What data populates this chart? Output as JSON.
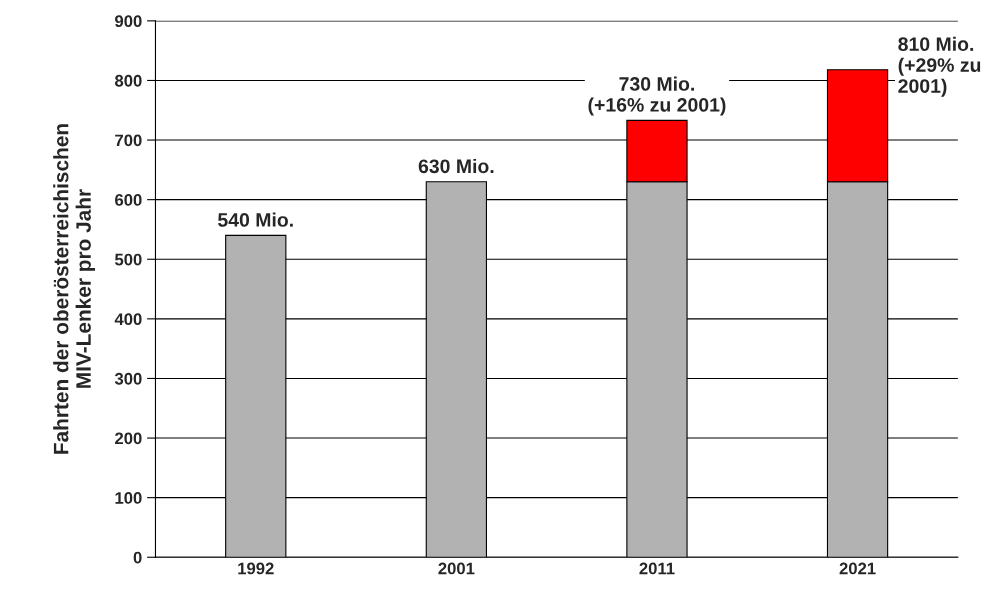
{
  "chart_data": {
    "type": "bar",
    "stacked": true,
    "ylabel": "Fahrten der oberösterreichischen\nMIV-Lenker pro Jahr",
    "categories": [
      "1992",
      "2001",
      "2011",
      "2021"
    ],
    "series": [
      {
        "color": "#b2b2b2",
        "values": [
          540,
          630,
          630,
          630
        ]
      },
      {
        "color": "#ff0000",
        "values": [
          null,
          null,
          103,
          188
        ]
      }
    ],
    "totals": [
      "540 Mio.",
      "630 Mio.",
      "730 Mio.\n(+16% zu 2001)",
      "810 Mio.\n(+29% zu\n2001)"
    ],
    "ylim": [
      0,
      900
    ],
    "yticks": [
      0,
      100,
      200,
      300,
      400,
      500,
      600,
      700,
      800,
      900
    ],
    "grid": "y"
  }
}
